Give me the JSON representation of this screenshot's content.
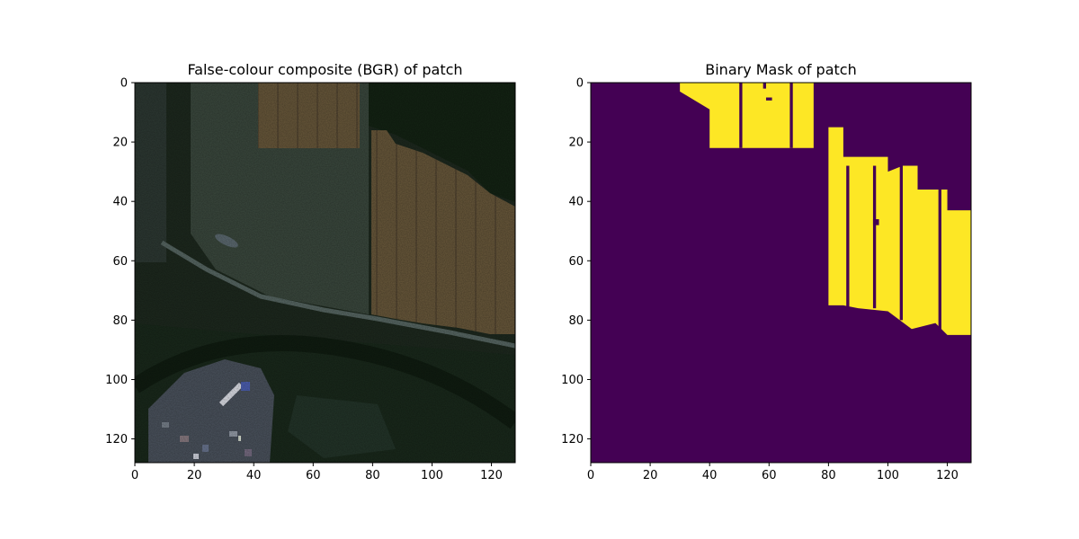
{
  "figure": {
    "panels": [
      {
        "title": "False-colour composite (BGR) of patch",
        "image_kind": "satellite-rgb-composite",
        "xticks": [
          "0",
          "20",
          "40",
          "60",
          "80",
          "100",
          "120"
        ],
        "yticks": [
          "0",
          "20",
          "40",
          "60",
          "80",
          "100",
          "120"
        ],
        "xlim": [
          0,
          128
        ],
        "ylim": [
          128,
          0
        ]
      },
      {
        "title": "Binary Mask of patch",
        "image_kind": "binary-mask",
        "xticks": [
          "0",
          "20",
          "40",
          "60",
          "80",
          "100",
          "120"
        ],
        "yticks": [
          "0",
          "20",
          "40",
          "60",
          "80",
          "100",
          "120"
        ],
        "xlim": [
          0,
          128
        ],
        "ylim": [
          128,
          0
        ],
        "colors": {
          "background": "#440154",
          "foreground": "#fde725"
        },
        "mask_regions": [
          {
            "name": "upper-field",
            "polygon": [
              [
                30,
                0
              ],
              [
                75,
                0
              ],
              [
                75,
                22
              ],
              [
                40,
                22
              ],
              [
                40,
                9
              ],
              [
                30,
                3
              ]
            ]
          },
          {
            "name": "right-field",
            "polygon": [
              [
                80,
                15
              ],
              [
                85,
                15
              ],
              [
                85,
                25
              ],
              [
                100,
                25
              ],
              [
                100,
                30
              ],
              [
                105,
                28
              ],
              [
                110,
                28
              ],
              [
                110,
                36
              ],
              [
                120,
                36
              ],
              [
                120,
                43
              ],
              [
                128,
                43
              ],
              [
                128,
                85
              ],
              [
                120,
                85
              ],
              [
                116,
                81
              ],
              [
                108,
                83
              ],
              [
                100,
                77
              ],
              [
                90,
                76
              ],
              [
                85,
                75
              ],
              [
                80,
                75
              ]
            ]
          }
        ],
        "mask_gaps": [
          {
            "name": "gap-1",
            "rect": [
              50,
              0,
              1,
              22
            ]
          },
          {
            "name": "gap-2",
            "rect": [
              67,
              0,
              1,
              22
            ]
          },
          {
            "name": "gap-3",
            "rect": [
              86,
              28,
              1,
              48
            ]
          },
          {
            "name": "gap-4",
            "rect": [
              95,
              28,
              1,
              48
            ]
          },
          {
            "name": "gap-5",
            "rect": [
              104,
              28,
              1,
              52
            ]
          },
          {
            "name": "gap-6",
            "rect": [
              117,
              36,
              1,
              48
            ]
          },
          {
            "name": "hole-1",
            "rect": [
              58,
              0,
              1,
              2
            ]
          },
          {
            "name": "hole-2",
            "rect": [
              59,
              5,
              2,
              1
            ]
          },
          {
            "name": "hole-3",
            "rect": [
              95,
              46,
              2,
              2
            ]
          }
        ]
      }
    ]
  }
}
